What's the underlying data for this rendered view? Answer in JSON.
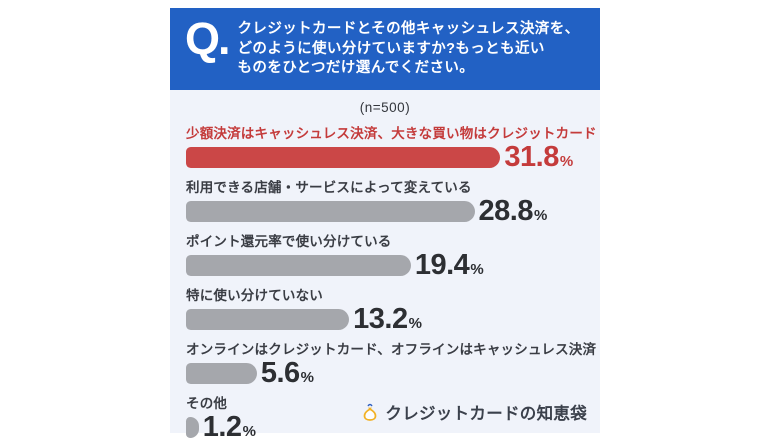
{
  "theme": {
    "page_bg": "#FFFFFF",
    "header_bg": "#2261C4",
    "header_text": "#FFFFFF",
    "panel_bg": "#F0F3FA",
    "highlight_bar": "#CB4747",
    "highlight_text": "#C43B3B",
    "bar_color": "#A5A7AC"
  },
  "header": {
    "q_label": "Q.",
    "question_lines": [
      "クレジットカードとその他キャッシュレス決済を、",
      "どのように使い分けていますか?もっとも近い",
      "ものをひとつだけ選んでください。"
    ]
  },
  "chart": {
    "sample_size_label": "(n=500)"
  },
  "chart_data": {
    "type": "bar",
    "orientation": "horizontal",
    "title": "クレジットカードとその他キャッシュレス決済を、どのように使い分けていますか?もっとも近いものをひとつだけ選んでください。",
    "sample_size_label": "(n=500)",
    "sample_size": 500,
    "unit": "%",
    "categories": [
      "少額決済はキャッシュレス決済、大きな買い物はクレジットカード",
      "利用できる店舗・サービスによって変えている",
      "ポイント還元率で使い分けている",
      "特に使い分けていない",
      "オンラインはクレジットカード、オフラインはキャッシュレス決済",
      "その他"
    ],
    "values": [
      31.8,
      28.8,
      19.4,
      13.2,
      5.6,
      1.2
    ],
    "highlight_index": 0,
    "bar_width_pct": [
      79,
      72.5,
      56.5,
      41,
      17.8,
      3.2
    ],
    "xlim": [
      0,
      40
    ],
    "grid": false,
    "legend": false
  },
  "footer": {
    "logo_text": "クレジットカードの知恵袋",
    "logo_icon": "pouch-icon"
  }
}
